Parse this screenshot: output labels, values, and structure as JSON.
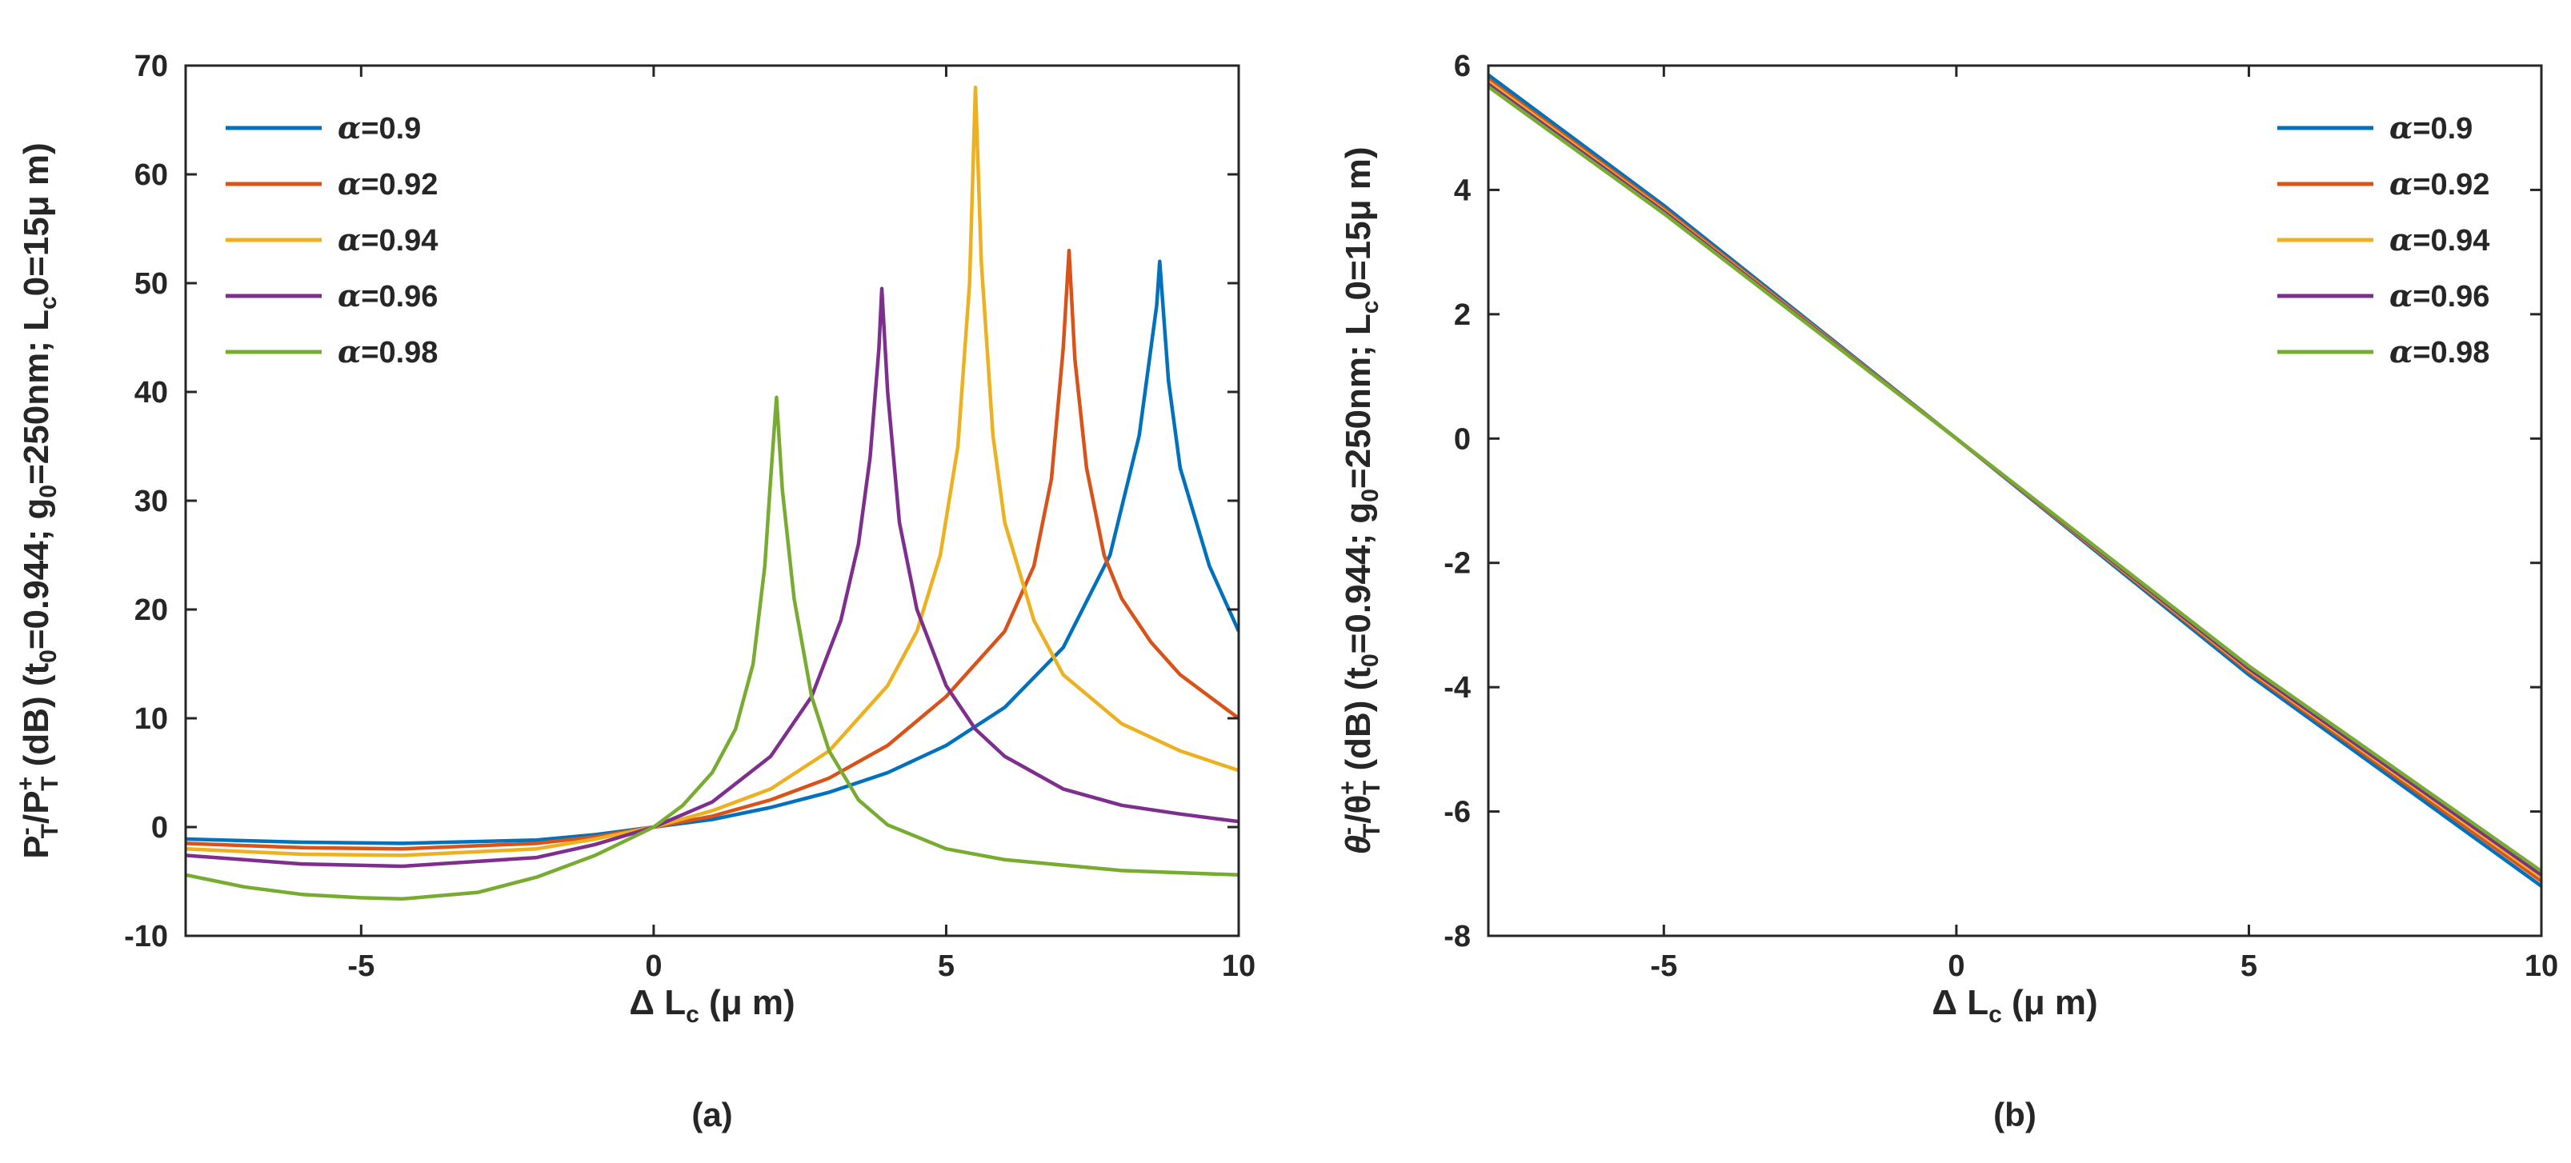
{
  "chart_data": [
    {
      "type": "line",
      "panel": "(a)",
      "xlabel": "Δ L_c (μ m)",
      "ylabel": "P_T^- / P_T^+ (dB) (t_0=0.944; g_0=250nm; L_c0=15μ m)",
      "xlim": [
        -8,
        10
      ],
      "ylim": [
        -10,
        70
      ],
      "xticks": [
        "-5",
        "0",
        "5",
        "10"
      ],
      "yticks": [
        "-10",
        "0",
        "10",
        "20",
        "30",
        "40",
        "50",
        "60",
        "70"
      ],
      "legend_position": "top-left",
      "grid": false,
      "series": [
        {
          "name": "α=0.9",
          "color": "#0072BD",
          "x": [
            -8,
            -6,
            -4.3,
            -2,
            -1,
            0,
            1,
            2,
            3,
            4,
            5,
            6,
            7,
            7.8,
            8.3,
            8.6,
            8.65,
            8.8,
            9,
            9.5,
            10
          ],
          "y": [
            -1.1,
            -1.4,
            -1.5,
            -1.2,
            -0.7,
            0,
            0.7,
            1.8,
            3.2,
            5,
            7.5,
            11,
            16.5,
            25,
            36,
            48,
            52,
            41,
            33,
            24,
            18
          ]
        },
        {
          "name": "α=0.92",
          "color": "#D95319",
          "x": [
            -8,
            -6,
            -4.3,
            -2,
            -1,
            0,
            1,
            2,
            3,
            4,
            5,
            6,
            6.5,
            6.8,
            7.0,
            7.1,
            7.2,
            7.4,
            7.7,
            8,
            8.5,
            9,
            9.5,
            10
          ],
          "y": [
            -1.5,
            -1.9,
            -2.0,
            -1.5,
            -0.9,
            0,
            1.0,
            2.5,
            4.5,
            7.5,
            12,
            18,
            24,
            32,
            44,
            53,
            43,
            33,
            25,
            21,
            17,
            14,
            12,
            10
          ]
        },
        {
          "name": "α=0.94",
          "color": "#EDB120",
          "x": [
            -8,
            -6,
            -4.3,
            -2,
            -1,
            0,
            1,
            2,
            3,
            4,
            4.5,
            4.9,
            5.2,
            5.4,
            5.5,
            5.6,
            5.8,
            6,
            6.5,
            7,
            8,
            9,
            10
          ],
          "y": [
            -2.0,
            -2.5,
            -2.6,
            -2.0,
            -1.1,
            0,
            1.5,
            3.5,
            7,
            13,
            18,
            25,
            35,
            50,
            68,
            52,
            36,
            28,
            19,
            14,
            9.5,
            7,
            5.2
          ]
        },
        {
          "name": "α=0.96",
          "color": "#7E2F8E",
          "x": [
            -8,
            -6,
            -4.3,
            -2,
            -1,
            0,
            1,
            2,
            2.7,
            3.2,
            3.5,
            3.7,
            3.85,
            3.9,
            4.0,
            4.2,
            4.5,
            5,
            5.5,
            6,
            7,
            8,
            9,
            10
          ],
          "y": [
            -2.6,
            -3.4,
            -3.6,
            -2.8,
            -1.6,
            0,
            2.3,
            6.5,
            12,
            19,
            26,
            34,
            44,
            49.5,
            40,
            28,
            20,
            13,
            9,
            6.5,
            3.5,
            2.0,
            1.2,
            0.5
          ]
        },
        {
          "name": "α=0.98",
          "color": "#77AC30",
          "x": [
            -8,
            -7,
            -6,
            -5,
            -4.3,
            -3,
            -2,
            -1,
            0,
            0.5,
            1,
            1.4,
            1.7,
            1.9,
            2.0,
            2.1,
            2.2,
            2.4,
            2.7,
            3,
            3.5,
            4,
            5,
            6,
            7,
            8,
            9,
            10
          ],
          "y": [
            -4.4,
            -5.5,
            -6.2,
            -6.5,
            -6.6,
            -6.0,
            -4.6,
            -2.6,
            0,
            2,
            5,
            9,
            15,
            24,
            32,
            39.5,
            31,
            21,
            12,
            7,
            2.5,
            0.2,
            -2,
            -3,
            -3.5,
            -4,
            -4.2,
            -4.4
          ]
        }
      ]
    },
    {
      "type": "line",
      "panel": "(b)",
      "xlabel": "Δ L_c (μ m)",
      "ylabel": "θ_T^- / θ_T^+ (dB) (t_0=0.944; g_0=250nm; L_c0=15μ m)",
      "xlim": [
        -8,
        10
      ],
      "ylim": [
        -8,
        6
      ],
      "xticks": [
        "-5",
        "0",
        "5",
        "10"
      ],
      "yticks": [
        "-8",
        "-6",
        "-4",
        "-2",
        "0",
        "2",
        "4",
        "6"
      ],
      "legend_position": "top-right",
      "grid": false,
      "series": [
        {
          "name": "α=0.9",
          "color": "#0072BD",
          "x": [
            -8,
            -5,
            0,
            5,
            10
          ],
          "y": [
            5.85,
            3.75,
            0,
            -3.8,
            -7.2
          ]
        },
        {
          "name": "α=0.92",
          "color": "#D95319",
          "x": [
            -8,
            -5,
            0,
            5,
            10
          ],
          "y": [
            5.78,
            3.7,
            0,
            -3.75,
            -7.12
          ]
        },
        {
          "name": "α=0.94",
          "color": "#EDB120",
          "x": [
            -8,
            -5,
            0,
            5,
            10
          ],
          "y": [
            5.74,
            3.67,
            0,
            -3.72,
            -7.06
          ]
        },
        {
          "name": "α=0.96",
          "color": "#7E2F8E",
          "x": [
            -8,
            -5,
            0,
            5,
            10
          ],
          "y": [
            5.7,
            3.65,
            0,
            -3.7,
            -7.02
          ]
        },
        {
          "name": "α=0.98",
          "color": "#77AC30",
          "x": [
            -8,
            -5,
            0,
            5,
            10
          ],
          "y": [
            5.66,
            3.62,
            0,
            -3.66,
            -6.96
          ]
        }
      ]
    }
  ],
  "labels": {
    "a": {
      "xlabel_main": "Δ L",
      "xlabel_sub": "c",
      "xlabel_unit": " (μ m)",
      "y_P1": "P",
      "y_sup1": "-",
      "y_sub1": "T",
      "y_slash": "/P",
      "y_sup2": "+",
      "y_sub2": "T",
      "y_rest1": " (dB) (t",
      "y_sub_t": "0",
      "y_rest2": "=0.944; g",
      "y_sub_g": "0",
      "y_rest3": "=250nm; L",
      "y_sub_L": "c",
      "y_rest4": "0=15μ m)",
      "caption": "(a)"
    },
    "b": {
      "xlabel_main": "Δ L",
      "xlabel_sub": "c",
      "xlabel_unit": " (μ m)",
      "y_P1": "θ",
      "y_sup1": "-",
      "y_sub1": "T",
      "y_slash": "/θ",
      "y_sup2": "+",
      "y_sub2": "T",
      "y_rest1": " (dB) (t",
      "y_sub_t": "0",
      "y_rest2": "=0.944; g",
      "y_sub_g": "0",
      "y_rest3": "=250nm; L",
      "y_sub_L": "c",
      "y_rest4": "0=15μ m)",
      "caption": "(b)"
    }
  }
}
